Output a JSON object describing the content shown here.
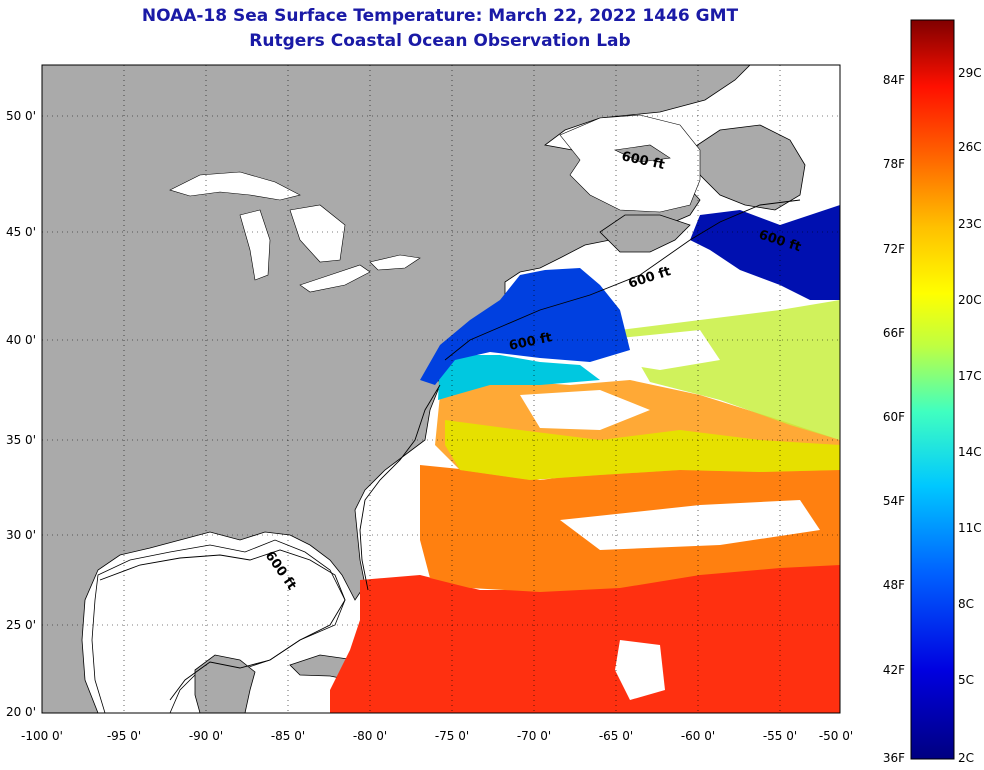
{
  "title_line1": "NOAA-18 Sea Surface Temperature:  March 22, 2022 1446 GMT",
  "title_line2": "Rutgers Coastal Ocean Observation Lab",
  "lat_labels": [
    "50 0'",
    "45 0'",
    "40 0'",
    "35 0'",
    "30 0'",
    "25 0'",
    "20 0'"
  ],
  "lon_labels": [
    "-100 0'",
    "-95 0'",
    "-90 0'",
    "-85 0'",
    "-80 0'",
    "-75 0'",
    "-70 0'",
    "-65 0'",
    "-60 0'",
    "-55 0'",
    "-50 0'"
  ],
  "isobath_label": "600 ft",
  "colorbar": {
    "fahrenheit": [
      "84F",
      "78F",
      "72F",
      "66F",
      "60F",
      "54F",
      "48F",
      "42F",
      "36F"
    ],
    "celsius": [
      "29C",
      "26C",
      "23C",
      "20C",
      "17C",
      "14C",
      "11C",
      "8C",
      "5C",
      "2C"
    ]
  },
  "colors": {
    "land": "#aaaaaa",
    "title": "#1a1aa6",
    "sst_cold": "#0000a0",
    "sst_cool": "#00c8ff",
    "sst_mild": "#e0f000",
    "sst_warm": "#ff9000",
    "sst_hot": "#ff2000"
  }
}
